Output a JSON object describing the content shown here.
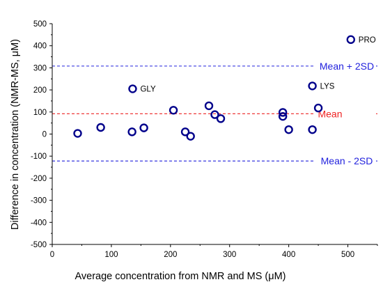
{
  "chart_data": {
    "type": "scatter",
    "title": "",
    "xlabel": "Average concentration from NMR and MS (μM)",
    "ylabel": "Difference in concentration (NMR-MS, μM)",
    "xlim": [
      0,
      550
    ],
    "ylim": [
      -500,
      500
    ],
    "x_ticks": [
      "0",
      "100",
      "200",
      "300",
      "400",
      "500"
    ],
    "y_ticks": [
      "-500",
      "-400",
      "-300",
      "-200",
      "-100",
      "0",
      "100",
      "200",
      "300",
      "400",
      "500"
    ],
    "grid": false,
    "series": [
      {
        "marker": "open-circle",
        "color": "#00008b",
        "points": [
          {
            "x": 43,
            "y": 3
          },
          {
            "x": 82,
            "y": 30
          },
          {
            "x": 136,
            "y": 205,
            "label": "GLY"
          },
          {
            "x": 135,
            "y": 10
          },
          {
            "x": 155,
            "y": 28
          },
          {
            "x": 205,
            "y": 108
          },
          {
            "x": 225,
            "y": 10
          },
          {
            "x": 234,
            "y": -10
          },
          {
            "x": 265,
            "y": 128
          },
          {
            "x": 275,
            "y": 88
          },
          {
            "x": 285,
            "y": 70
          },
          {
            "x": 390,
            "y": 98
          },
          {
            "x": 390,
            "y": 80
          },
          {
            "x": 400,
            "y": 20
          },
          {
            "x": 440,
            "y": 218,
            "label": "LYS"
          },
          {
            "x": 440,
            "y": 20
          },
          {
            "x": 450,
            "y": 118
          },
          {
            "x": 505,
            "y": 428,
            "label": "PRO"
          }
        ]
      }
    ],
    "reference_lines": [
      {
        "label": "Mean + 2SD",
        "y": 308,
        "color": "#2222dd",
        "style": "dashed"
      },
      {
        "label": "Mean",
        "y": 92,
        "color": "#ee2222",
        "style": "dashed"
      },
      {
        "label": "Mean - 2SD",
        "y": -122,
        "color": "#2222dd",
        "style": "dashed"
      }
    ]
  }
}
